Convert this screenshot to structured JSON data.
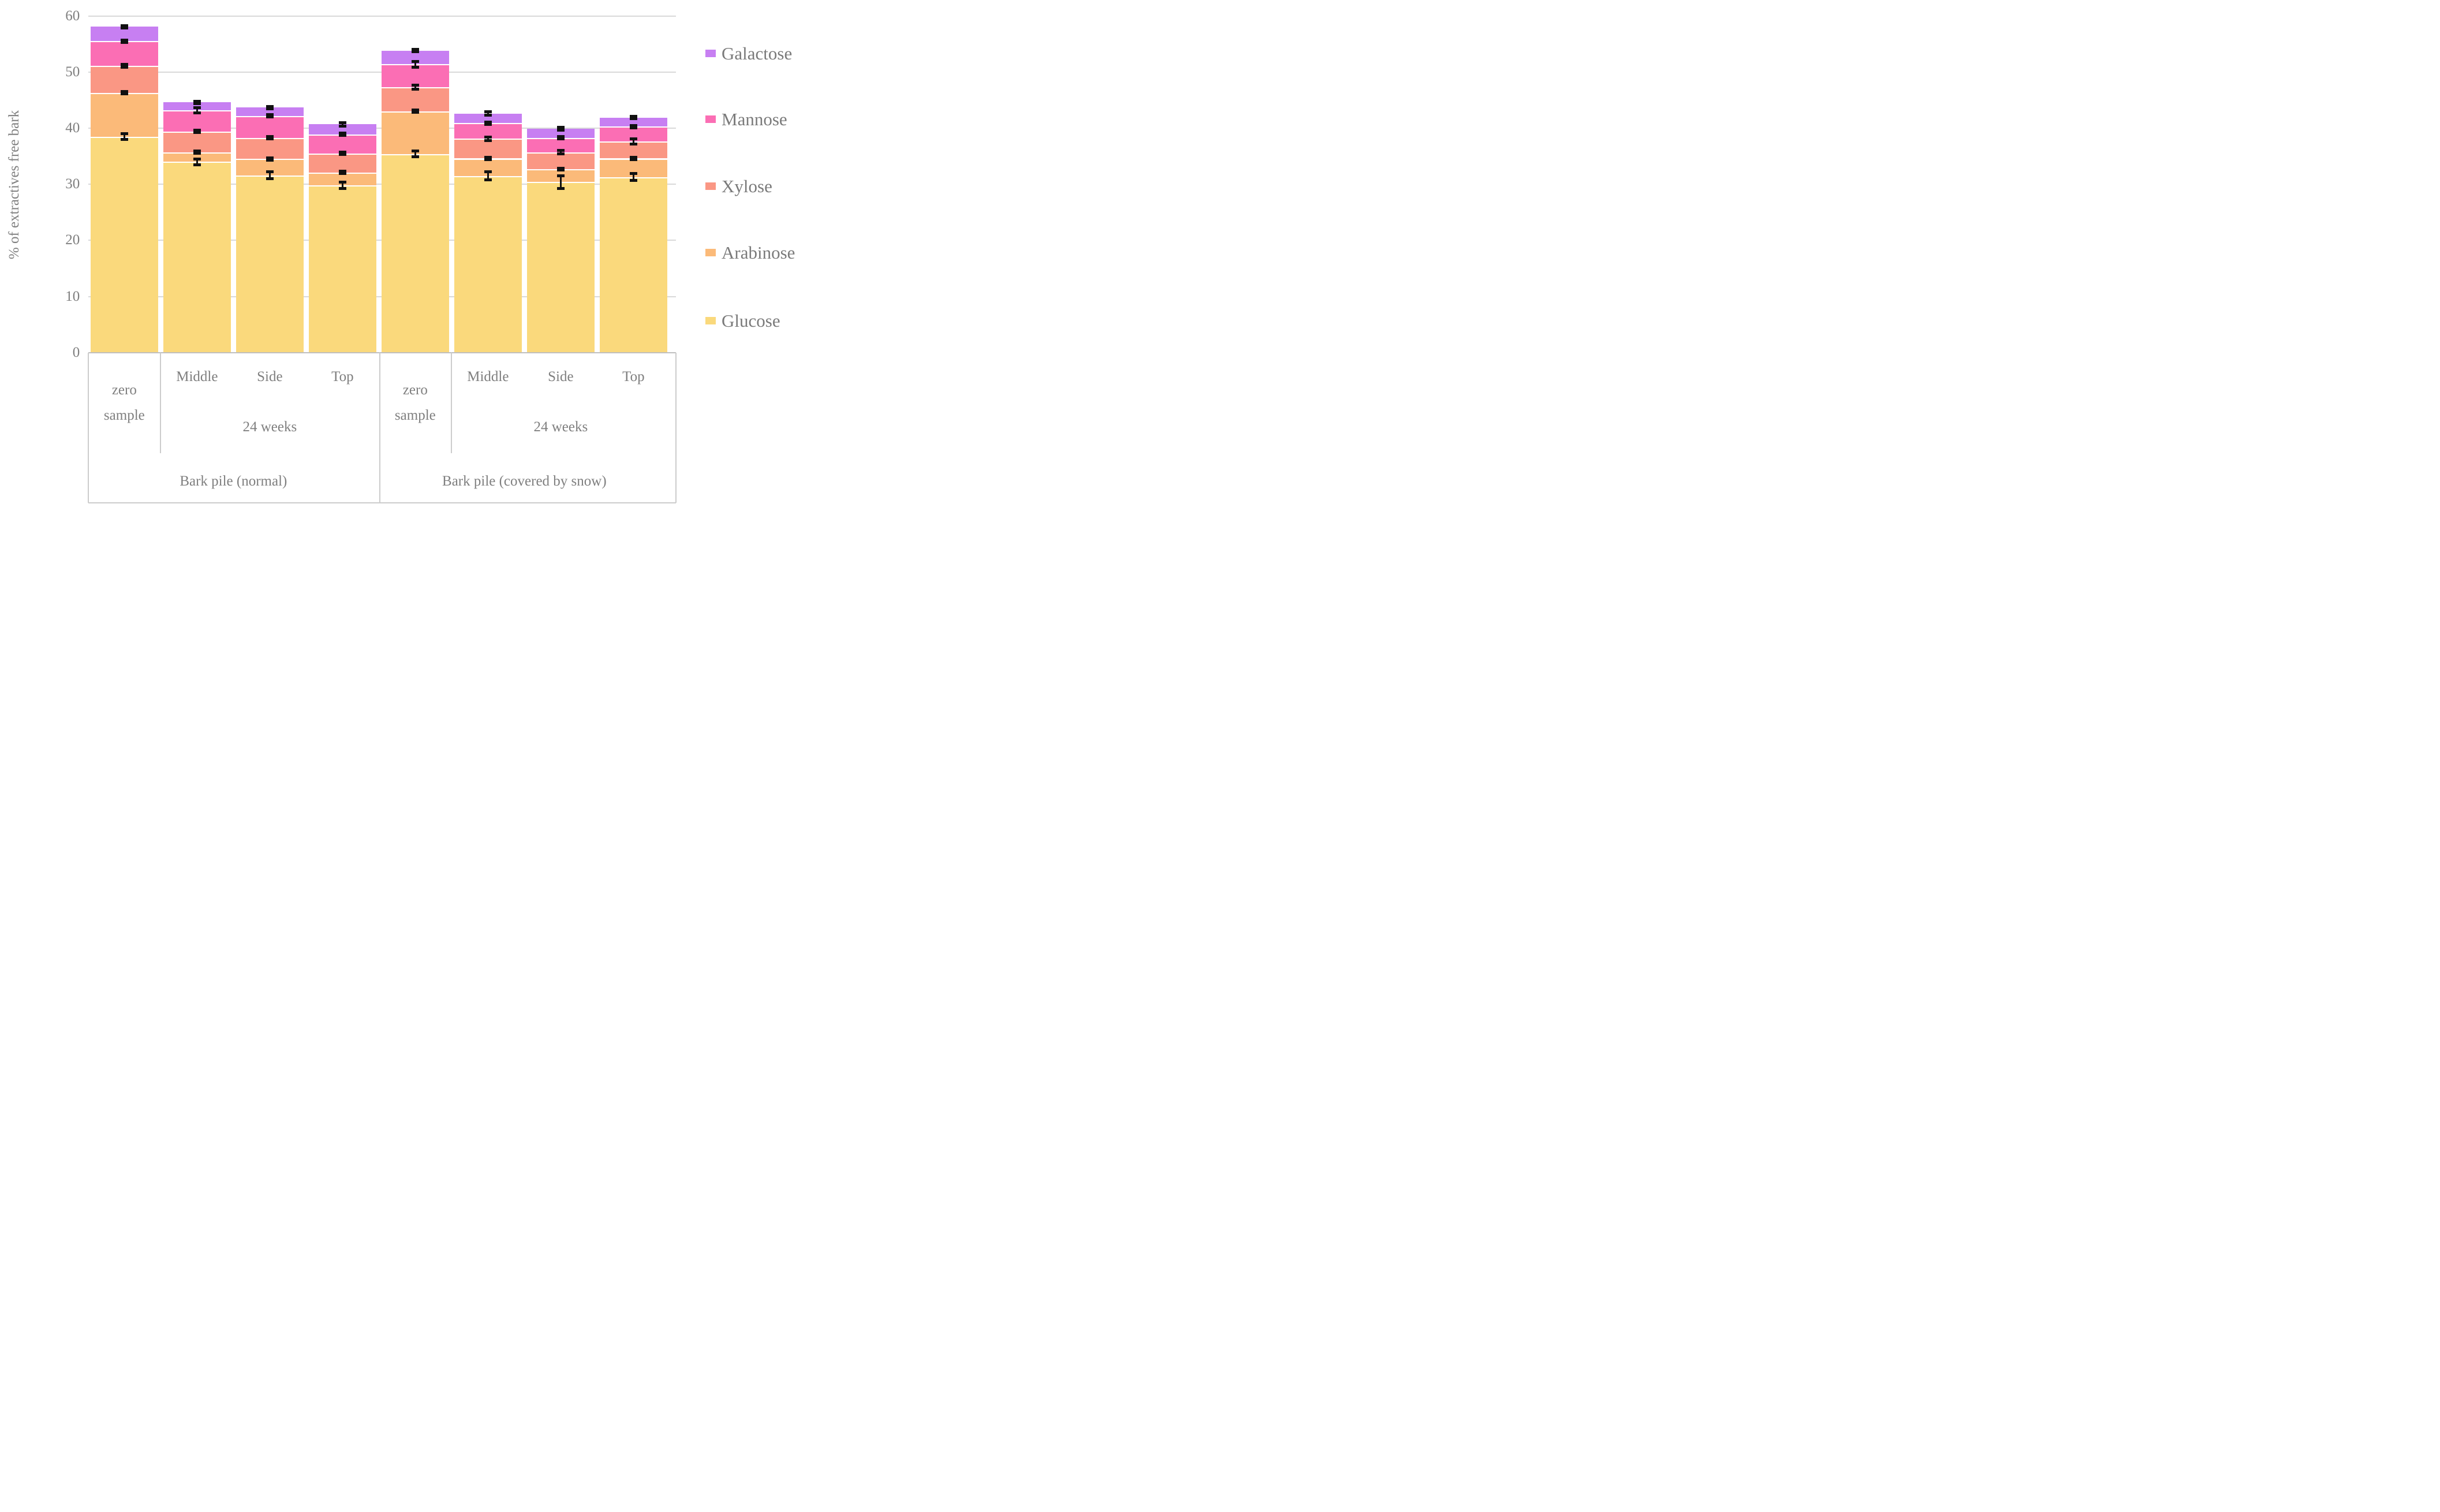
{
  "chart_data": {
    "type": "bar",
    "stacked": true,
    "title": "",
    "xlabel": "",
    "ylabel": "% of extractives free bark",
    "ylim": [
      0,
      60
    ],
    "y_ticks": [
      0,
      10,
      20,
      30,
      40,
      50,
      60
    ],
    "grid": true,
    "legend_position": "right",
    "series_bottom_to_top": [
      "Glucose",
      "Arabinose",
      "Xylose",
      "Mannose",
      "Galactose"
    ],
    "series_colors": {
      "Glucose": "#fad97c",
      "Arabinose": "#fbba79",
      "Xylose": "#fa9784",
      "Mannose": "#fb6eb4",
      "Galactose": "#c77ff2"
    },
    "error_bar_color": "#111111",
    "bars": [
      {
        "group": "Bark pile (normal)",
        "time": "zero sample",
        "position": "",
        "segments": {
          "Glucose": 38.5,
          "Arabinose": 7.8,
          "Xylose": 4.8,
          "Mannose": 4.4,
          "Galactose": 2.6
        },
        "errors": {
          "Glucose": 0.5,
          "Arabinose": 0.2,
          "Xylose": 0.25,
          "Mannose": 0.2,
          "Galactose": 0.2
        }
      },
      {
        "group": "Bark pile (normal)",
        "time": "24 weeks",
        "position": "Middle",
        "segments": {
          "Glucose": 34.0,
          "Arabinose": 1.7,
          "Xylose": 3.7,
          "Mannose": 3.8,
          "Galactose": 1.4
        },
        "errors": {
          "Glucose": 0.5,
          "Arabinose": 0.2,
          "Xylose": 0.2,
          "Mannose": 0.45,
          "Galactose": 0.2
        }
      },
      {
        "group": "Bark pile (normal)",
        "time": "24 weeks",
        "position": "Side",
        "segments": {
          "Glucose": 31.6,
          "Arabinose": 2.9,
          "Xylose": 3.8,
          "Mannose": 3.9,
          "Galactose": 1.5
        },
        "errors": {
          "Glucose": 0.6,
          "Arabinose": 0.2,
          "Xylose": 0.2,
          "Mannose": 0.2,
          "Galactose": 0.2
        }
      },
      {
        "group": "Bark pile (normal)",
        "time": "24 weeks",
        "position": "Top",
        "segments": {
          "Glucose": 29.8,
          "Arabinose": 2.3,
          "Xylose": 3.4,
          "Mannose": 3.4,
          "Galactose": 1.8
        },
        "errors": {
          "Glucose": 0.6,
          "Arabinose": 0.2,
          "Xylose": 0.2,
          "Mannose": 0.2,
          "Galactose": 0.3
        }
      },
      {
        "group": "Bark pile (covered by snow)",
        "time": "zero sample",
        "position": "",
        "segments": {
          "Glucose": 35.4,
          "Arabinose": 7.6,
          "Xylose": 4.3,
          "Mannose": 4.1,
          "Galactose": 2.4
        },
        "errors": {
          "Glucose": 0.5,
          "Arabinose": 0.2,
          "Xylose": 0.35,
          "Mannose": 0.5,
          "Galactose": 0.2
        }
      },
      {
        "group": "Bark pile (covered by snow)",
        "time": "24 weeks",
        "position": "Middle",
        "segments": {
          "Glucose": 31.5,
          "Arabinose": 3.1,
          "Xylose": 3.5,
          "Mannose": 2.8,
          "Galactose": 1.7
        },
        "errors": {
          "Glucose": 0.7,
          "Arabinose": 0.2,
          "Xylose": 0.35,
          "Mannose": 0.2,
          "Galactose": 0.3
        }
      },
      {
        "group": "Bark pile (covered by snow)",
        "time": "24 weeks",
        "position": "Side",
        "segments": {
          "Glucose": 30.4,
          "Arabinose": 2.3,
          "Xylose": 3.0,
          "Mannose": 2.6,
          "Galactose": 1.6
        },
        "errors": {
          "Glucose": 1.1,
          "Arabinose": 0.2,
          "Xylose": 0.3,
          "Mannose": 0.2,
          "Galactose": 0.25
        }
      },
      {
        "group": "Bark pile (covered by snow)",
        "time": "24 weeks",
        "position": "Top",
        "segments": {
          "Glucose": 31.3,
          "Arabinose": 3.3,
          "Xylose": 3.0,
          "Mannose": 2.7,
          "Galactose": 1.6
        },
        "errors": {
          "Glucose": 0.65,
          "Arabinose": 0.2,
          "Xylose": 0.45,
          "Mannose": 0.2,
          "Galactose": 0.25
        }
      }
    ],
    "x_axis": {
      "position_labels": [
        "",
        "Middle",
        "Side",
        "Top",
        "",
        "Middle",
        "Side",
        "Top"
      ],
      "time_cells": [
        {
          "label": "zero sample",
          "bars": [
            0
          ]
        },
        {
          "label": "24 weeks",
          "bars": [
            1,
            2,
            3
          ]
        },
        {
          "label": "zero sample",
          "bars": [
            4
          ]
        },
        {
          "label": "24 weeks",
          "bars": [
            5,
            6,
            7
          ]
        }
      ],
      "group_cells": [
        {
          "label": "Bark pile (normal)",
          "bars": [
            0,
            1,
            2,
            3
          ]
        },
        {
          "label": "Bark pile (covered by snow)",
          "bars": [
            4,
            5,
            6,
            7
          ]
        }
      ]
    }
  },
  "legend": {
    "items": [
      {
        "label": "Galactose",
        "color": "#c77ff2"
      },
      {
        "label": "Mannose",
        "color": "#fb6eb4"
      },
      {
        "label": "Xylose",
        "color": "#fa9784"
      },
      {
        "label": "Arabinose",
        "color": "#fbba79"
      },
      {
        "label": "Glucose",
        "color": "#fad97c"
      }
    ]
  }
}
